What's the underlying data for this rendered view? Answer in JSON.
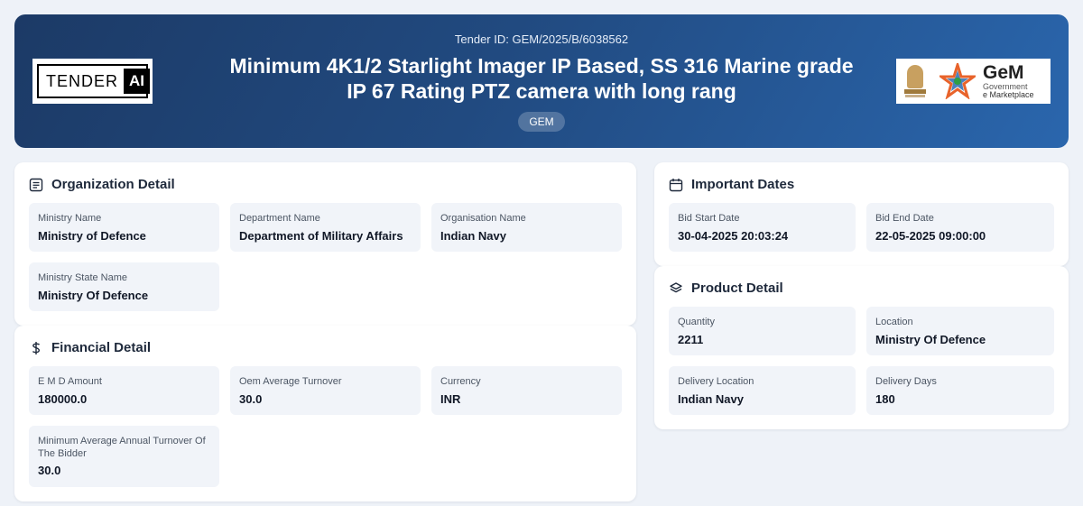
{
  "header": {
    "brand_left": {
      "word1": "TENDER",
      "word2": "AI"
    },
    "tender_id": "Tender ID: GEM/2025/B/6038562",
    "title_line1": "Minimum 4K1/2 Starlight Imager IP Based, SS 316 Marine grade",
    "title_line2": "IP 67 Rating PTZ camera with long rang",
    "badge": "GEM",
    "brand_right": {
      "name": "GeM",
      "sub1": "Government",
      "sub2": "e Marketplace"
    }
  },
  "organization": {
    "title": "Organization Detail",
    "icon": "document-list-icon",
    "fields": [
      {
        "label": "Ministry Name",
        "value": "Ministry of Defence"
      },
      {
        "label": "Department Name",
        "value": "Department of Military Affairs"
      },
      {
        "label": "Organisation Name",
        "value": "Indian Navy"
      },
      {
        "label": "Ministry State Name",
        "value": "Ministry Of Defence"
      }
    ]
  },
  "financial": {
    "title": "Financial Detail",
    "icon": "dollar-icon",
    "fields": [
      {
        "label": "E M D Amount",
        "value": "180000.0"
      },
      {
        "label": "Oem Average Turnover",
        "value": "30.0"
      },
      {
        "label": "Currency",
        "value": "INR"
      },
      {
        "label": "Minimum Average Annual Turnover Of The Bidder",
        "value": "30.0"
      }
    ]
  },
  "dates": {
    "title": "Important Dates",
    "icon": "calendar-icon",
    "fields": [
      {
        "label": "Bid Start Date",
        "value": "30-04-2025 20:03:24"
      },
      {
        "label": "Bid End Date",
        "value": "22-05-2025 09:00:00"
      }
    ]
  },
  "product": {
    "title": "Product Detail",
    "icon": "layers-icon",
    "fields": [
      {
        "label": "Quantity",
        "value": "2211"
      },
      {
        "label": "Location",
        "value": "Ministry Of Defence"
      },
      {
        "label": "Delivery Location",
        "value": "Indian Navy"
      },
      {
        "label": "Delivery Days",
        "value": "180"
      }
    ]
  },
  "colors": {
    "header_start": "#1c3a66",
    "header_end": "#2a66ad",
    "field_bg": "#f1f4f9",
    "page_bg": "#eef2f8"
  }
}
